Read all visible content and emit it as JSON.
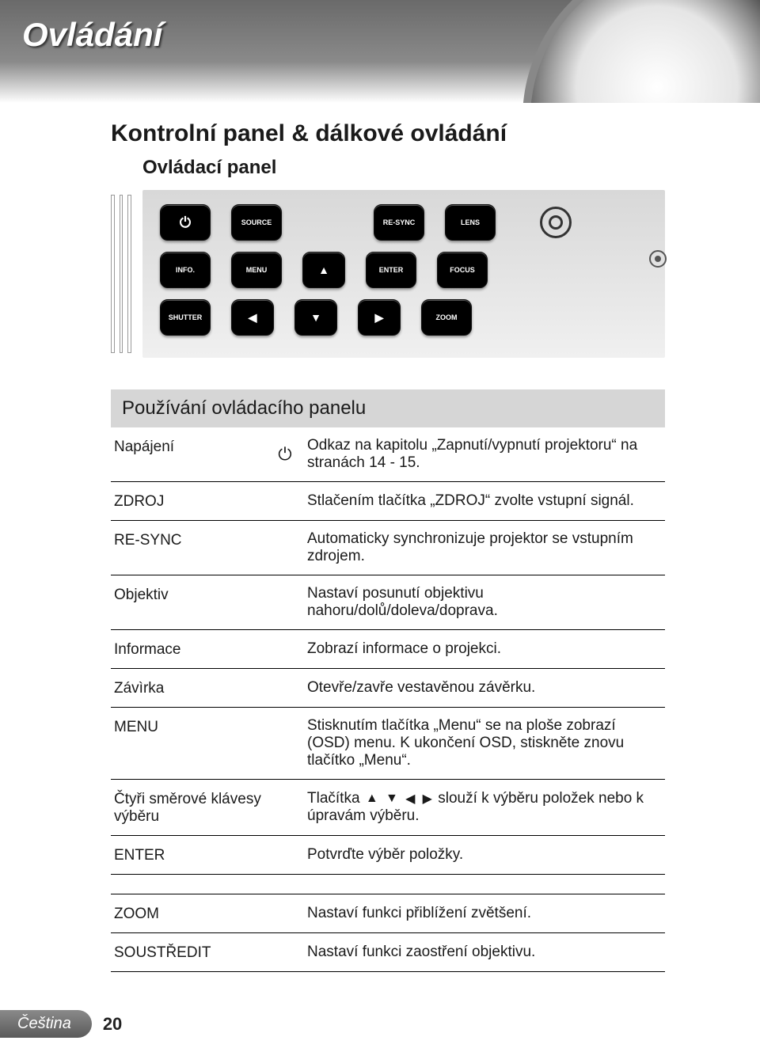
{
  "page": {
    "title": "Ovládání",
    "section": "Kontrolní panel & dálkové ovládání",
    "subsection": "Ovládací panel",
    "language": "Čeština",
    "number": "20"
  },
  "panel": {
    "row1": {
      "b1_icon": "power",
      "b2": "SOURCE",
      "b3": "RE-SYNC",
      "b4": "LENS"
    },
    "row2": {
      "b1": "INFO.",
      "b2": "MENU",
      "b3_icon": "up",
      "b4": "ENTER",
      "b5": "FOCUS"
    },
    "row3": {
      "b1": "SHUTTER",
      "b2_icon": "left",
      "b3_icon": "down",
      "b4_icon": "right",
      "b5": "ZOOM"
    }
  },
  "table": {
    "heading": "Používání ovládacího panelu",
    "rows": [
      {
        "label": "Napájení",
        "icon": "power",
        "desc": "Odkaz na kapitolu „Zapnutí/vypnutí projektoru“ na stranách 14 - 15."
      },
      {
        "label": "ZDROJ",
        "desc": "Stlačením tlačítka „ZDROJ“ zvolte vstupní signál."
      },
      {
        "label": "RE-SYNC",
        "desc": "Automaticky synchronizuje projektor se vstupním zdrojem."
      },
      {
        "label": "Objektiv",
        "desc": "Nastaví posunutí objektivu nahoru/dolů/doleva/doprava."
      },
      {
        "label": "Informace",
        "desc": "Zobrazí informace o projekci."
      },
      {
        "label": "Závìrka",
        "desc": "Otevře/zavře vestavěnou závěrku."
      },
      {
        "label": "MENU",
        "desc": "Stisknutím tlačítka „Menu“ se na ploše zobrazí (OSD) menu. K ukončení OSD, stiskněte znovu tlačítko „Menu“."
      },
      {
        "label": "Čtyři směrové klávesy výběru",
        "arrows": true,
        "desc_pre": "Tlačítka ",
        "desc_post": " slouží k výběru položek nebo k úpravám výběru."
      },
      {
        "label": "ENTER",
        "desc": "Potvrďte výběr položky."
      },
      {
        "label": "ZOOM",
        "desc": "Nastaví funkci přiblížení zvětšení."
      },
      {
        "label": "SOUSTŘEDIT",
        "desc": "Nastaví funkci zaostření objektivu."
      }
    ]
  },
  "colors": {
    "header_grad_top": "#6a6a6a",
    "header_grad_bottom": "#ffffff",
    "button_bg": "#000000",
    "button_fg": "#ffffff",
    "table_heading_bg": "#d6d6d6",
    "border": "#000000",
    "footer_tab_bg_top": "#8a8a8a",
    "footer_tab_bg_bottom": "#5a5a5a"
  },
  "typography": {
    "title_pt": 42,
    "section_pt": 30,
    "subsection_pt": 24,
    "table_heading_pt": 24,
    "body_pt": 19,
    "button_label_pt": 9
  }
}
